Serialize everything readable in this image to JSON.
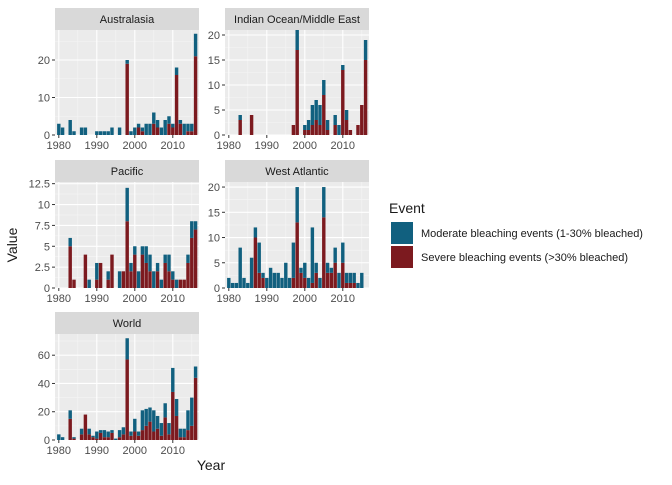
{
  "chart_data": {
    "type": "bar",
    "stacked": true,
    "facet": "wrap",
    "xlabel": "Year",
    "ylabel": "Value",
    "legend": {
      "title": "Event",
      "placement": "right",
      "entries": [
        {
          "name": "Moderate bleaching events (1-30% bleached)",
          "color": "#11607f"
        },
        {
          "name": "Severe bleaching events (>30% bleached)",
          "color": "#7c1a1f"
        }
      ]
    },
    "x_ticks": [
      1980,
      1990,
      2000,
      2010
    ],
    "x": [
      1980,
      1981,
      1982,
      1983,
      1984,
      1985,
      1986,
      1987,
      1988,
      1989,
      1990,
      1991,
      1992,
      1993,
      1994,
      1995,
      1996,
      1997,
      1998,
      1999,
      2000,
      2001,
      2002,
      2003,
      2004,
      2005,
      2006,
      2007,
      2008,
      2009,
      2010,
      2011,
      2012,
      2013,
      2014,
      2015,
      2016
    ],
    "series_names": [
      "Moderate bleaching events (1-30% bleached)",
      "Severe bleaching events (>30% bleached)"
    ],
    "panels": [
      {
        "title": "Australasia",
        "ylim": [
          0,
          28
        ],
        "y_ticks": [
          0,
          10,
          20
        ],
        "moderate": [
          3,
          2,
          0,
          4,
          1,
          0,
          2,
          2,
          0,
          0,
          1,
          1,
          1,
          1,
          2,
          0,
          2,
          0,
          1,
          1,
          2,
          1,
          1,
          3,
          3,
          3,
          2,
          2,
          4,
          2,
          1,
          2,
          1,
          3,
          2,
          2,
          6
        ],
        "severe": [
          0,
          0,
          0,
          0,
          0,
          0,
          0,
          0,
          0,
          0,
          0,
          0,
          0,
          0,
          0,
          0,
          0,
          0,
          19,
          0,
          0,
          2,
          1,
          0,
          0,
          3,
          2,
          0,
          0,
          3,
          2,
          16,
          3,
          0,
          1,
          1,
          21
        ]
      },
      {
        "title": "Indian Ocean/Middle East",
        "ylim": [
          0,
          21
        ],
        "y_ticks": [
          0,
          5,
          10,
          15,
          20
        ],
        "moderate": [
          0,
          0,
          0,
          1,
          0,
          0,
          0,
          0,
          0,
          0,
          0,
          0,
          0,
          0,
          0,
          0,
          0,
          0,
          4,
          0,
          1,
          2,
          4,
          4,
          4,
          3,
          2,
          0,
          2,
          2,
          1,
          2,
          0,
          0,
          0,
          0,
          4
        ],
        "severe": [
          0,
          0,
          0,
          3,
          0,
          0,
          4,
          0,
          0,
          0,
          0,
          0,
          0,
          0,
          0,
          0,
          0,
          2,
          17,
          0,
          1,
          1,
          2,
          3,
          2,
          8,
          1,
          0,
          2,
          0,
          13,
          3,
          1,
          0,
          2,
          6,
          15
        ]
      },
      {
        "title": "Pacific",
        "ylim": [
          0,
          12.7
        ],
        "y_ticks": [
          0,
          2.5,
          5,
          7.5,
          10,
          12.5
        ],
        "moderate": [
          0,
          0,
          0,
          1,
          0,
          0,
          0,
          0,
          1,
          0,
          2,
          0,
          0,
          1,
          0,
          0,
          2,
          0,
          4,
          1,
          1,
          2,
          1,
          2,
          2,
          2,
          1,
          1,
          1,
          2,
          1,
          1,
          0,
          0,
          1,
          2,
          1
        ],
        "severe": [
          0,
          0,
          0,
          5,
          1,
          0,
          0,
          4,
          0,
          0,
          1,
          3,
          0,
          1,
          4,
          0,
          0,
          2,
          8,
          2,
          4,
          0,
          4,
          3,
          2,
          0,
          2,
          0,
          3,
          2,
          1,
          0,
          1,
          1,
          3,
          6,
          7
        ]
      },
      {
        "title": "West Atlantic",
        "ylim": [
          0,
          21
        ],
        "y_ticks": [
          0,
          5,
          10,
          15,
          20
        ],
        "moderate": [
          2,
          1,
          1,
          8,
          2,
          1,
          6,
          2,
          6,
          1,
          2,
          4,
          3,
          3,
          2,
          5,
          2,
          7,
          7,
          1,
          3,
          2,
          11,
          2,
          2,
          6,
          2,
          1,
          3,
          3,
          4,
          2,
          2,
          2,
          1,
          3,
          0
        ],
        "severe": [
          0,
          0,
          0,
          0,
          0,
          0,
          0,
          10,
          3,
          2,
          0,
          0,
          0,
          0,
          0,
          0,
          0,
          2,
          13,
          3,
          2,
          0,
          1,
          3,
          0,
          14,
          3,
          3,
          5,
          0,
          5,
          1,
          1,
          1,
          0,
          0,
          0
        ]
      },
      {
        "title": "World",
        "ylim": [
          0,
          75
        ],
        "y_ticks": [
          0,
          20,
          40,
          60
        ],
        "moderate": [
          4,
          2,
          0,
          6,
          1,
          0,
          4,
          0,
          4,
          1,
          5,
          2,
          5,
          4,
          2,
          1,
          5,
          5,
          15,
          3,
          9,
          3,
          14,
          12,
          10,
          15,
          9,
          9,
          10,
          8,
          17,
          12,
          6,
          6,
          14,
          20,
          8
        ],
        "severe": [
          0,
          0,
          0,
          15,
          1,
          0,
          4,
          18,
          4,
          2,
          1,
          5,
          2,
          2,
          5,
          0,
          2,
          4,
          57,
          3,
          6,
          3,
          7,
          10,
          13,
          6,
          8,
          3,
          16,
          4,
          34,
          17,
          2,
          2,
          7,
          10,
          44
        ]
      }
    ]
  }
}
